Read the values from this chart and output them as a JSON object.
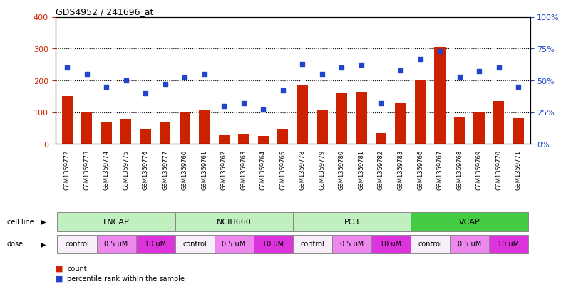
{
  "title": "GDS4952 / 241696_at",
  "samples": [
    "GSM1359772",
    "GSM1359773",
    "GSM1359774",
    "GSM1359775",
    "GSM1359776",
    "GSM1359777",
    "GSM1359760",
    "GSM1359761",
    "GSM1359762",
    "GSM1359763",
    "GSM1359764",
    "GSM1359765",
    "GSM1359778",
    "GSM1359779",
    "GSM1359780",
    "GSM1359781",
    "GSM1359782",
    "GSM1359783",
    "GSM1359766",
    "GSM1359767",
    "GSM1359768",
    "GSM1359769",
    "GSM1359770",
    "GSM1359771"
  ],
  "bar_values": [
    150,
    100,
    68,
    80,
    47,
    68,
    100,
    105,
    27,
    33,
    25,
    48,
    185,
    105,
    160,
    165,
    35,
    130,
    200,
    305,
    85,
    100,
    135,
    82
  ],
  "dot_values": [
    60,
    55,
    45,
    50,
    40,
    47,
    52,
    55,
    30,
    32,
    27,
    42,
    63,
    55,
    60,
    62,
    32,
    58,
    67,
    73,
    53,
    57,
    60,
    45
  ],
  "cell_line_data": [
    {
      "label": "LNCAP",
      "start": 0,
      "end": 5,
      "color": "#c0f0c0"
    },
    {
      "label": "NCIH660",
      "start": 6,
      "end": 11,
      "color": "#c0f0c0"
    },
    {
      "label": "PC3",
      "start": 12,
      "end": 17,
      "color": "#c0f0c0"
    },
    {
      "label": "VCAP",
      "start": 18,
      "end": 23,
      "color": "#44cc44"
    }
  ],
  "dose_data": [
    {
      "label": "control",
      "start": 0,
      "end": 1,
      "color": "#f8f0f8"
    },
    {
      "label": "0.5 uM",
      "start": 2,
      "end": 3,
      "color": "#ee88ee"
    },
    {
      "label": "10 uM",
      "start": 4,
      "end": 5,
      "color": "#dd33dd"
    },
    {
      "label": "control",
      "start": 6,
      "end": 7,
      "color": "#f8f0f8"
    },
    {
      "label": "0.5 uM",
      "start": 8,
      "end": 9,
      "color": "#ee88ee"
    },
    {
      "label": "10 uM",
      "start": 10,
      "end": 11,
      "color": "#dd33dd"
    },
    {
      "label": "control",
      "start": 12,
      "end": 13,
      "color": "#f8f0f8"
    },
    {
      "label": "0.5 uM",
      "start": 14,
      "end": 15,
      "color": "#ee88ee"
    },
    {
      "label": "10 uM",
      "start": 16,
      "end": 17,
      "color": "#dd33dd"
    },
    {
      "label": "control",
      "start": 18,
      "end": 19,
      "color": "#f8f0f8"
    },
    {
      "label": "0.5 uM",
      "start": 20,
      "end": 21,
      "color": "#ee88ee"
    },
    {
      "label": "10 uM",
      "start": 22,
      "end": 23,
      "color": "#dd33dd"
    }
  ],
  "bar_color": "#cc2200",
  "dot_color": "#2244cc",
  "ylim_left": [
    0,
    400
  ],
  "ylim_right": [
    0,
    100
  ],
  "yticks_left": [
    0,
    100,
    200,
    300,
    400
  ],
  "ytick_right_labels": [
    "0%",
    "25%",
    "50%",
    "75%",
    "100%"
  ],
  "yticks_right": [
    0,
    25,
    50,
    75,
    100
  ],
  "bg_color": "#e8e8e8",
  "plot_bg": "#ffffff"
}
